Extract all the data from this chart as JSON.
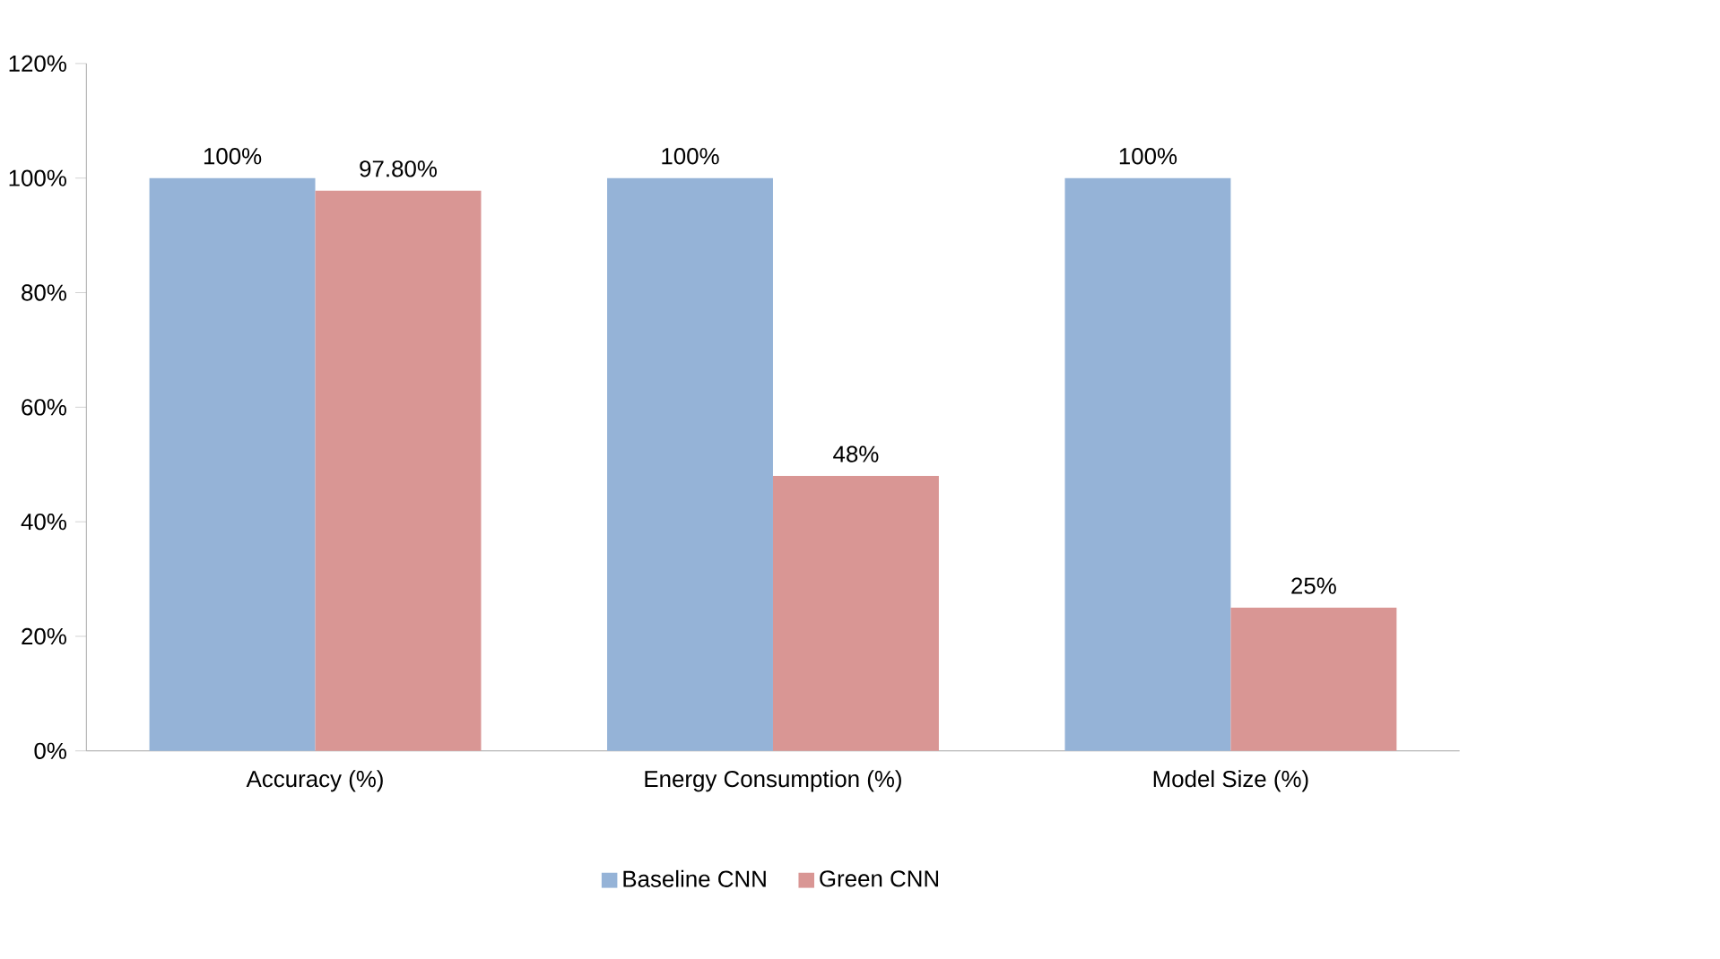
{
  "chart_data": {
    "type": "bar",
    "categories": [
      "Accuracy (%)",
      "Energy Consumption (%)",
      "Model Size (%)"
    ],
    "series": [
      {
        "name": "Baseline CNN",
        "color": "#95b3d7",
        "values": [
          100,
          100,
          100
        ],
        "value_labels": [
          "100%",
          "100%",
          "100%"
        ]
      },
      {
        "name": "Green CNN",
        "color": "#d99694",
        "values": [
          97.8,
          48,
          25
        ],
        "value_labels": [
          "97.80%",
          "48%",
          "25%"
        ]
      }
    ],
    "ylim": [
      0,
      120
    ],
    "yticks": [
      {
        "value": 0,
        "label": "0%"
      },
      {
        "value": 20,
        "label": "20%"
      },
      {
        "value": 40,
        "label": "40%"
      },
      {
        "value": 60,
        "label": "60%"
      },
      {
        "value": 80,
        "label": "80%"
      },
      {
        "value": 100,
        "label": "100%"
      },
      {
        "value": 120,
        "label": "120%"
      }
    ],
    "grid": false,
    "legend": "bottom"
  }
}
